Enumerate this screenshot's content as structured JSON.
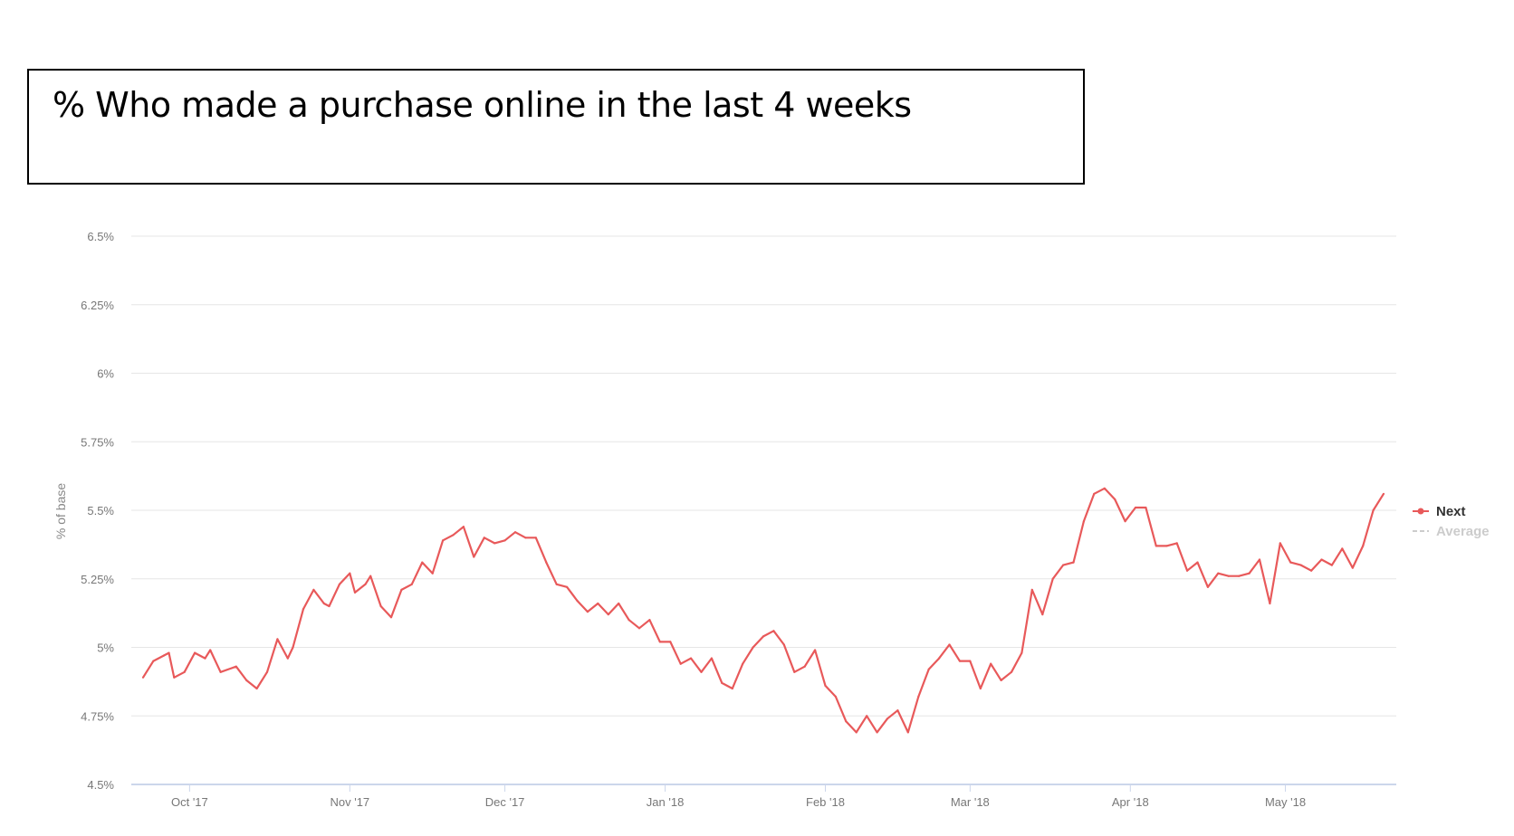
{
  "header": {
    "title": "% Who made a purchase online in the last 4 weeks"
  },
  "chart_data": {
    "type": "line",
    "title": "% Who made a purchase online in the last 4 weeks",
    "xlabel": "",
    "ylabel": "% of base",
    "ylim": [
      4.5,
      6.5
    ],
    "y_ticks": [
      "6.5%",
      "6.25%",
      "6%",
      "5.75%",
      "5.5%",
      "5.25%",
      "5%",
      "4.75%",
      "4.5%"
    ],
    "y_tick_values": [
      6.5,
      6.25,
      6.0,
      5.75,
      5.5,
      5.25,
      5.0,
      4.75,
      4.5
    ],
    "x_ticks": [
      "Oct '17",
      "Nov '17",
      "Dec '17",
      "Jan '18",
      "Feb '18",
      "Mar '18",
      "Apr '18",
      "May '18"
    ],
    "x_range": [
      "2017-09-22",
      "2018-05-20"
    ],
    "x_tick_dates": [
      "2017-10-01",
      "2017-11-01",
      "2017-12-01",
      "2018-01-01",
      "2018-02-01",
      "2018-03-01",
      "2018-04-01",
      "2018-05-01"
    ],
    "grid": true,
    "legend_position": "right",
    "colors": {
      "next": "#e8595a",
      "average": "#cccccc",
      "grid": "#e6e6e6",
      "axis": "#ccd6eb"
    },
    "series": [
      {
        "name": "Next",
        "points": [
          [
            "2017-09-22",
            4.89
          ],
          [
            "2017-09-24",
            4.95
          ],
          [
            "2017-09-26",
            4.97
          ],
          [
            "2017-09-27",
            4.98
          ],
          [
            "2017-09-28",
            4.89
          ],
          [
            "2017-09-30",
            4.91
          ],
          [
            "2017-10-02",
            4.98
          ],
          [
            "2017-10-04",
            4.96
          ],
          [
            "2017-10-05",
            4.99
          ],
          [
            "2017-10-07",
            4.91
          ],
          [
            "2017-10-10",
            4.93
          ],
          [
            "2017-10-12",
            4.88
          ],
          [
            "2017-10-14",
            4.85
          ],
          [
            "2017-10-16",
            4.91
          ],
          [
            "2017-10-18",
            5.03
          ],
          [
            "2017-10-20",
            4.96
          ],
          [
            "2017-10-21",
            5.0
          ],
          [
            "2017-10-23",
            5.14
          ],
          [
            "2017-10-25",
            5.21
          ],
          [
            "2017-10-27",
            5.16
          ],
          [
            "2017-10-28",
            5.15
          ],
          [
            "2017-10-30",
            5.23
          ],
          [
            "2017-11-01",
            5.27
          ],
          [
            "2017-11-02",
            5.2
          ],
          [
            "2017-11-04",
            5.23
          ],
          [
            "2017-11-05",
            5.26
          ],
          [
            "2017-11-07",
            5.15
          ],
          [
            "2017-11-09",
            5.11
          ],
          [
            "2017-11-11",
            5.21
          ],
          [
            "2017-11-13",
            5.23
          ],
          [
            "2017-11-15",
            5.31
          ],
          [
            "2017-11-17",
            5.27
          ],
          [
            "2017-11-19",
            5.39
          ],
          [
            "2017-11-21",
            5.41
          ],
          [
            "2017-11-23",
            5.44
          ],
          [
            "2017-11-25",
            5.33
          ],
          [
            "2017-11-27",
            5.4
          ],
          [
            "2017-11-29",
            5.38
          ],
          [
            "2017-12-01",
            5.39
          ],
          [
            "2017-12-03",
            5.42
          ],
          [
            "2017-12-05",
            5.4
          ],
          [
            "2017-12-07",
            5.4
          ],
          [
            "2017-12-09",
            5.31
          ],
          [
            "2017-12-11",
            5.23
          ],
          [
            "2017-12-13",
            5.22
          ],
          [
            "2017-12-15",
            5.17
          ],
          [
            "2017-12-17",
            5.13
          ],
          [
            "2017-12-19",
            5.16
          ],
          [
            "2017-12-21",
            5.12
          ],
          [
            "2017-12-23",
            5.16
          ],
          [
            "2017-12-25",
            5.1
          ],
          [
            "2017-12-27",
            5.07
          ],
          [
            "2017-12-29",
            5.1
          ],
          [
            "2017-12-31",
            5.02
          ],
          [
            "2018-01-02",
            5.02
          ],
          [
            "2018-01-04",
            4.94
          ],
          [
            "2018-01-06",
            4.96
          ],
          [
            "2018-01-08",
            4.91
          ],
          [
            "2018-01-10",
            4.96
          ],
          [
            "2018-01-12",
            4.87
          ],
          [
            "2018-01-14",
            4.85
          ],
          [
            "2018-01-16",
            4.94
          ],
          [
            "2018-01-18",
            5.0
          ],
          [
            "2018-01-20",
            5.04
          ],
          [
            "2018-01-22",
            5.06
          ],
          [
            "2018-01-24",
            5.01
          ],
          [
            "2018-01-26",
            4.91
          ],
          [
            "2018-01-28",
            4.93
          ],
          [
            "2018-01-30",
            4.99
          ],
          [
            "2018-02-01",
            4.86
          ],
          [
            "2018-02-03",
            4.82
          ],
          [
            "2018-02-05",
            4.73
          ],
          [
            "2018-02-07",
            4.69
          ],
          [
            "2018-02-09",
            4.75
          ],
          [
            "2018-02-11",
            4.69
          ],
          [
            "2018-02-13",
            4.74
          ],
          [
            "2018-02-15",
            4.77
          ],
          [
            "2018-02-17",
            4.69
          ],
          [
            "2018-02-19",
            4.82
          ],
          [
            "2018-02-21",
            4.92
          ],
          [
            "2018-02-23",
            4.96
          ],
          [
            "2018-02-25",
            5.01
          ],
          [
            "2018-02-27",
            4.95
          ],
          [
            "2018-03-01",
            4.95
          ],
          [
            "2018-03-03",
            4.85
          ],
          [
            "2018-03-05",
            4.94
          ],
          [
            "2018-03-07",
            4.88
          ],
          [
            "2018-03-09",
            4.91
          ],
          [
            "2018-03-11",
            4.98
          ],
          [
            "2018-03-13",
            5.21
          ],
          [
            "2018-03-15",
            5.12
          ],
          [
            "2018-03-17",
            5.25
          ],
          [
            "2018-03-19",
            5.3
          ],
          [
            "2018-03-21",
            5.31
          ],
          [
            "2018-03-23",
            5.46
          ],
          [
            "2018-03-25",
            5.56
          ],
          [
            "2018-03-27",
            5.58
          ],
          [
            "2018-03-29",
            5.54
          ],
          [
            "2018-03-31",
            5.46
          ],
          [
            "2018-04-02",
            5.51
          ],
          [
            "2018-04-04",
            5.51
          ],
          [
            "2018-04-06",
            5.37
          ],
          [
            "2018-04-08",
            5.37
          ],
          [
            "2018-04-10",
            5.38
          ],
          [
            "2018-04-12",
            5.28
          ],
          [
            "2018-04-14",
            5.31
          ],
          [
            "2018-04-16",
            5.22
          ],
          [
            "2018-04-18",
            5.27
          ],
          [
            "2018-04-20",
            5.26
          ],
          [
            "2018-04-22",
            5.26
          ],
          [
            "2018-04-24",
            5.27
          ],
          [
            "2018-04-26",
            5.32
          ],
          [
            "2018-04-28",
            5.16
          ],
          [
            "2018-04-30",
            5.38
          ],
          [
            "2018-05-02",
            5.31
          ],
          [
            "2018-05-04",
            5.3
          ],
          [
            "2018-05-06",
            5.28
          ],
          [
            "2018-05-08",
            5.32
          ],
          [
            "2018-05-10",
            5.3
          ],
          [
            "2018-05-12",
            5.36
          ],
          [
            "2018-05-14",
            5.29
          ],
          [
            "2018-05-16",
            5.37
          ],
          [
            "2018-05-18",
            5.5
          ],
          [
            "2018-05-20",
            5.56
          ]
        ]
      },
      {
        "name": "Average",
        "values": []
      }
    ]
  }
}
